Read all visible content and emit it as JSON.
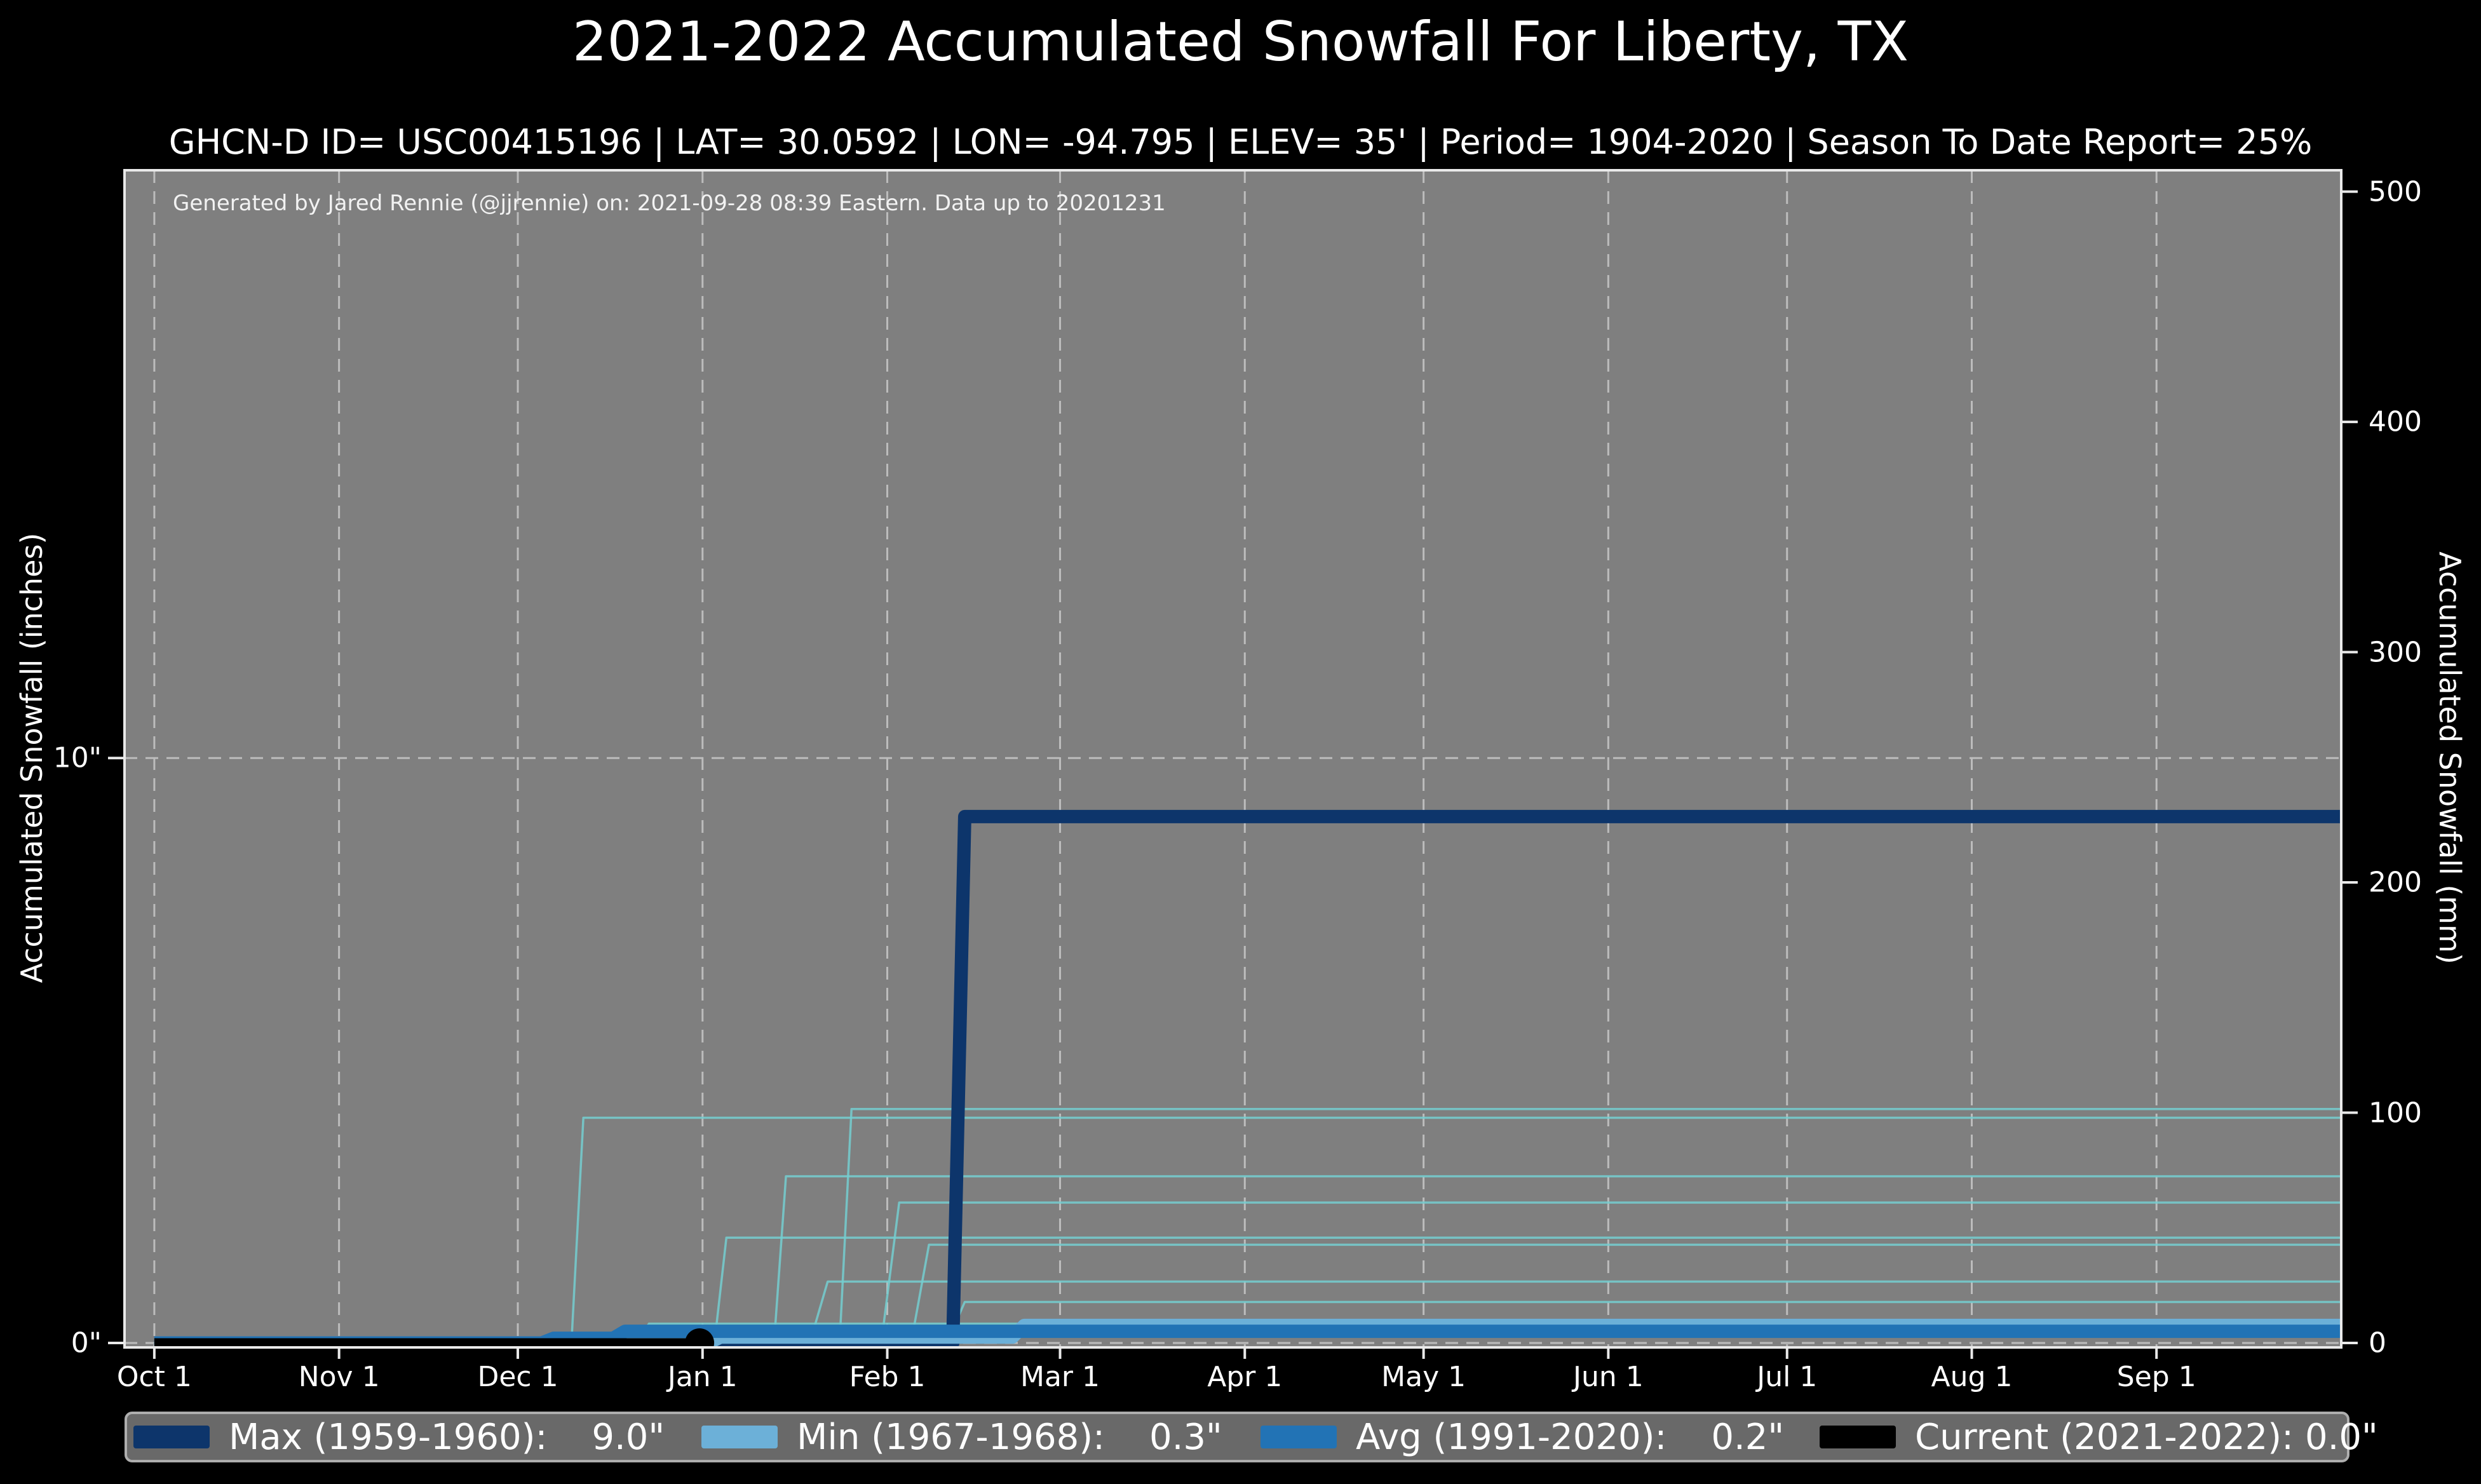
{
  "page": {
    "title": "2021-2022 Accumulated Snowfall For Liberty, TX",
    "subtitle": "GHCN-D ID= USC00415196 | LAT= 30.0592 | LON= -94.795 | ELEV= 35' | Period= 1904-2020 | Season To Date Report= 25%"
  },
  "annotation": "Generated by Jared Rennie (@jjrennie) on: 2021-09-28 08:39 Eastern. Data up to 20201231",
  "colors": {
    "page_bg": "#000000",
    "plot_bg": "#7f7f7f",
    "spine": "#e9e9e9",
    "grid": "#c3c3c3",
    "historical": "#74ced0",
    "text": "#ffffff"
  },
  "axes": {
    "x": {
      "months": [
        {
          "label": "Oct 1",
          "day": 0
        },
        {
          "label": "Nov 1",
          "day": 31
        },
        {
          "label": "Dec 1",
          "day": 61
        },
        {
          "label": "Jan 1",
          "day": 92
        },
        {
          "label": "Feb 1",
          "day": 123
        },
        {
          "label": "Mar 1",
          "day": 152
        },
        {
          "label": "Apr 1",
          "day": 183
        },
        {
          "label": "May 1",
          "day": 213
        },
        {
          "label": "Jun 1",
          "day": 244
        },
        {
          "label": "Jul 1",
          "day": 274
        },
        {
          "label": "Aug 1",
          "day": 305
        },
        {
          "label": "Sep 1",
          "day": 336
        }
      ]
    },
    "y_left": {
      "label": "Accumulated Snowfall (inches)",
      "ticks": [
        {
          "label": "0\"",
          "inches": 0
        },
        {
          "label": "10\"",
          "inches": 10
        }
      ]
    },
    "y_right": {
      "label": "Accumulated Snowfall (mm)",
      "ticks": [
        {
          "label": "0",
          "mm": 0
        },
        {
          "label": "100",
          "mm": 100
        },
        {
          "label": "200",
          "mm": 200
        },
        {
          "label": "300",
          "mm": 300
        },
        {
          "label": "400",
          "mm": 400
        },
        {
          "label": "500",
          "mm": 500
        }
      ]
    }
  },
  "chart_data": {
    "type": "line",
    "title": "2021-2022 Accumulated Snowfall For Liberty, TX",
    "x_unit": "days since Oct 1 (season day)",
    "xlim_days": [
      -5,
      367
    ],
    "ylim_inches": [
      0,
      20.05
    ],
    "grid": "dashed, at month starts and at 0\" and 10\"",
    "legend_position": "bottom",
    "series": [
      {
        "name": "Max (1959-1960)",
        "final_value_inches": 9.0,
        "value_label": "9.0\"",
        "color": "#0d356b",
        "width": 21,
        "points": [
          [
            0,
            0
          ],
          [
            134,
            0
          ],
          [
            136,
            9.0
          ],
          [
            367,
            9.0
          ]
        ]
      },
      {
        "name": "Min (1967-1968)",
        "final_value_inches": 0.3,
        "value_label": "0.3\"",
        "color": "#6cb0d8",
        "width": 21,
        "points": [
          [
            0,
            0
          ],
          [
            93,
            0
          ],
          [
            95,
            0.1
          ],
          [
            144,
            0.1
          ],
          [
            146,
            0.3
          ],
          [
            367,
            0.3
          ]
        ]
      },
      {
        "name": "Avg (1991-2020)",
        "final_value_inches": 0.2,
        "value_label": "0.2\"",
        "color": "#2273b5",
        "width": 21,
        "points": [
          [
            0,
            0
          ],
          [
            65,
            0
          ],
          [
            67,
            0.08
          ],
          [
            77,
            0.08
          ],
          [
            79,
            0.2
          ],
          [
            367,
            0.2
          ]
        ]
      },
      {
        "name": "Current (2021-2022)",
        "final_value_inches": 0.0,
        "value_label": "0.0\"",
        "color": "#000000",
        "width": 15,
        "points": [
          [
            0,
            0
          ],
          [
            91.5,
            0
          ]
        ],
        "end_marker": {
          "day": 91.5,
          "inches": 0,
          "radius": 23
        }
      }
    ],
    "historical_series_note": "faint step lines: individual 1904-2020 seasons",
    "historical_series": [
      {
        "points": [
          [
            0,
            0
          ],
          [
            70,
            0
          ],
          [
            72,
            3.85
          ],
          [
            367,
            3.85
          ]
        ]
      },
      {
        "points": [
          [
            0,
            0
          ],
          [
            115,
            0
          ],
          [
            117,
            4.0
          ],
          [
            367,
            4.0
          ]
        ]
      },
      {
        "points": [
          [
            0,
            0
          ],
          [
            104,
            0
          ],
          [
            106,
            2.85
          ],
          [
            367,
            2.85
          ]
        ]
      },
      {
        "points": [
          [
            0,
            0
          ],
          [
            122,
            0
          ],
          [
            125,
            2.4
          ],
          [
            367,
            2.4
          ]
        ]
      },
      {
        "points": [
          [
            0,
            0
          ],
          [
            94,
            0
          ],
          [
            96,
            1.8
          ],
          [
            367,
            1.8
          ]
        ]
      },
      {
        "points": [
          [
            0,
            0
          ],
          [
            127,
            0
          ],
          [
            130,
            1.68
          ],
          [
            367,
            1.68
          ]
        ]
      },
      {
        "points": [
          [
            0,
            0
          ],
          [
            110,
            0
          ],
          [
            113,
            1.05
          ],
          [
            367,
            1.05
          ]
        ]
      },
      {
        "points": [
          [
            0,
            0
          ],
          [
            133,
            0
          ],
          [
            136,
            0.7
          ],
          [
            367,
            0.7
          ]
        ]
      },
      {
        "points": [
          [
            0,
            0
          ],
          [
            81,
            0
          ],
          [
            83,
            0.33
          ],
          [
            367,
            0.33
          ]
        ]
      },
      {
        "points": [
          [
            0,
            0
          ],
          [
            102,
            0
          ],
          [
            104,
            0.25
          ],
          [
            367,
            0.25
          ]
        ]
      }
    ]
  },
  "legend": {
    "entries": [
      {
        "name": "Max (1959-1960):",
        "value": "9.0\""
      },
      {
        "name": "Min (1967-1968):",
        "value": "0.3\""
      },
      {
        "name": "Avg (1991-2020):",
        "value": "0.2\""
      },
      {
        "name": "Current (2021-2022):",
        "value": "0.0\""
      }
    ]
  }
}
